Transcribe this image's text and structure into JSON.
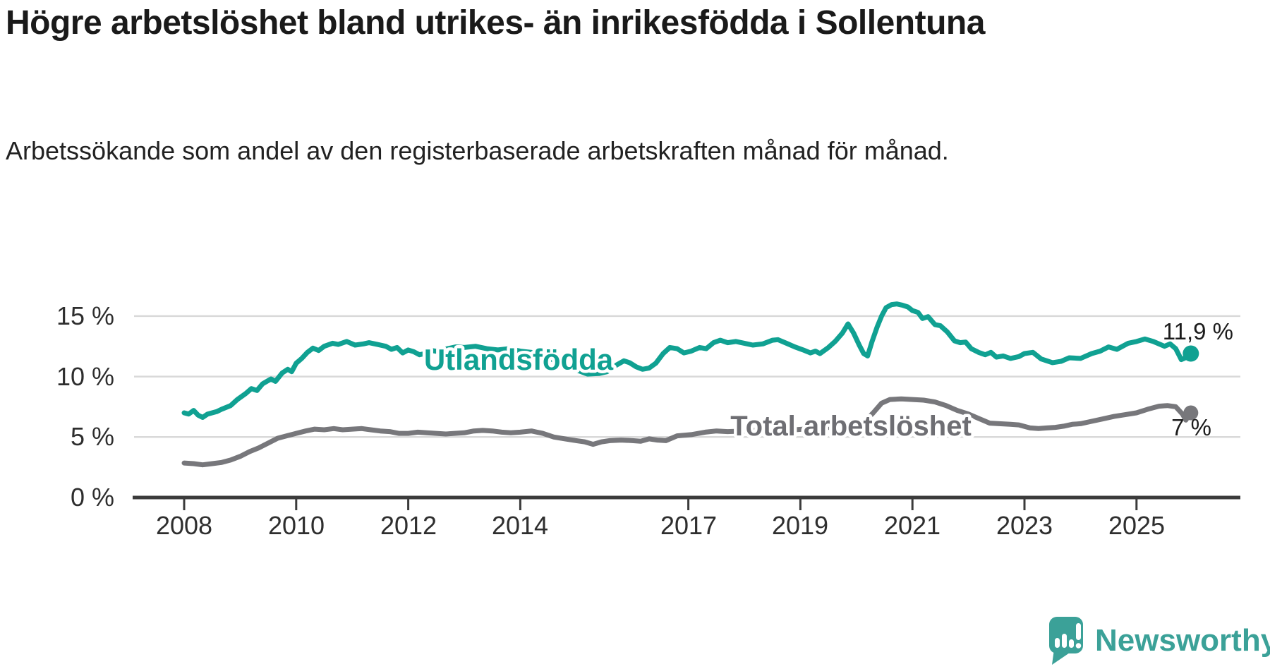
{
  "title": "Högre arbetslöshet bland utrikes- än inrikesfödda i Sollentuna",
  "subtitle": "Arbetssökande som andel av den registerbaserade arbetskraften månad för månad.",
  "branding": {
    "logo_text": "Newsworthy",
    "logo_icon": "speech-bubble-bar-chart-icon",
    "logo_color": "#3ba198"
  },
  "chart_data": {
    "type": "line",
    "title": "Högre arbetslöshet bland utrikes- än inrikesfödda i Sollentuna",
    "xlabel": "",
    "ylabel": "",
    "grid": true,
    "x_axis": {
      "ticks": [
        2008,
        2010,
        2012,
        2014,
        2017,
        2019,
        2021,
        2023,
        2025
      ],
      "tick_labels": [
        "2008",
        "2010",
        "2012",
        "2014",
        "2017",
        "2019",
        "2021",
        "2023",
        "2025"
      ]
    },
    "y_axis": {
      "ticks": [
        0,
        5,
        10,
        15
      ],
      "tick_labels": [
        "0 %",
        "5 %",
        "10 %",
        "15 %"
      ],
      "range": [
        0,
        16.5
      ]
    },
    "series": [
      {
        "name": "Utlandsfödda",
        "color": "#10a192",
        "end_label": "11,9 %",
        "end_value": 11.9,
        "points": [
          [
            2008.0,
            7.0
          ],
          [
            2008.08,
            6.9
          ],
          [
            2008.17,
            7.2
          ],
          [
            2008.25,
            6.8
          ],
          [
            2008.33,
            6.62
          ],
          [
            2008.42,
            6.9
          ],
          [
            2008.5,
            7.0
          ],
          [
            2008.58,
            7.1
          ],
          [
            2008.67,
            7.3
          ],
          [
            2008.83,
            7.6
          ],
          [
            2008.95,
            8.1
          ],
          [
            2009.1,
            8.6
          ],
          [
            2009.2,
            9.0
          ],
          [
            2009.3,
            8.85
          ],
          [
            2009.4,
            9.4
          ],
          [
            2009.55,
            9.8
          ],
          [
            2009.63,
            9.6
          ],
          [
            2009.75,
            10.3
          ],
          [
            2009.85,
            10.6
          ],
          [
            2009.92,
            10.4
          ],
          [
            2010.0,
            11.1
          ],
          [
            2010.1,
            11.5
          ],
          [
            2010.2,
            12.0
          ],
          [
            2010.3,
            12.35
          ],
          [
            2010.4,
            12.15
          ],
          [
            2010.5,
            12.5
          ],
          [
            2010.65,
            12.75
          ],
          [
            2010.75,
            12.65
          ],
          [
            2010.9,
            12.9
          ],
          [
            2011.05,
            12.6
          ],
          [
            2011.2,
            12.7
          ],
          [
            2011.3,
            12.8
          ],
          [
            2011.45,
            12.65
          ],
          [
            2011.6,
            12.5
          ],
          [
            2011.7,
            12.25
          ],
          [
            2011.8,
            12.4
          ],
          [
            2011.9,
            11.95
          ],
          [
            2012.0,
            12.2
          ],
          [
            2012.1,
            12.05
          ],
          [
            2012.2,
            11.8
          ],
          [
            2012.3,
            11.9
          ],
          [
            2012.42,
            12.15
          ],
          [
            2012.55,
            12.05
          ],
          [
            2012.7,
            12.3
          ],
          [
            2012.85,
            12.45
          ],
          [
            2013.0,
            12.4
          ],
          [
            2013.2,
            12.5
          ],
          [
            2013.4,
            12.3
          ],
          [
            2013.6,
            12.2
          ],
          [
            2013.8,
            12.3
          ],
          [
            2014.0,
            12.1
          ],
          [
            2014.2,
            12.0
          ],
          [
            2014.4,
            11.7
          ],
          [
            2014.6,
            11.35
          ],
          [
            2014.8,
            11.0
          ],
          [
            2015.0,
            10.55
          ],
          [
            2015.2,
            10.2
          ],
          [
            2015.4,
            10.25
          ],
          [
            2015.55,
            10.4
          ],
          [
            2015.7,
            10.9
          ],
          [
            2015.85,
            11.3
          ],
          [
            2015.95,
            11.15
          ],
          [
            2016.07,
            10.8
          ],
          [
            2016.18,
            10.6
          ],
          [
            2016.3,
            10.7
          ],
          [
            2016.42,
            11.1
          ],
          [
            2016.55,
            11.9
          ],
          [
            2016.67,
            12.4
          ],
          [
            2016.8,
            12.3
          ],
          [
            2016.92,
            11.95
          ],
          [
            2017.05,
            12.1
          ],
          [
            2017.2,
            12.4
          ],
          [
            2017.32,
            12.3
          ],
          [
            2017.45,
            12.8
          ],
          [
            2017.57,
            13.0
          ],
          [
            2017.7,
            12.8
          ],
          [
            2017.85,
            12.9
          ],
          [
            2018.0,
            12.75
          ],
          [
            2018.15,
            12.6
          ],
          [
            2018.33,
            12.7
          ],
          [
            2018.5,
            13.0
          ],
          [
            2018.6,
            13.05
          ],
          [
            2018.75,
            12.75
          ],
          [
            2018.9,
            12.45
          ],
          [
            2019.05,
            12.2
          ],
          [
            2019.18,
            11.95
          ],
          [
            2019.27,
            12.1
          ],
          [
            2019.35,
            11.9
          ],
          [
            2019.5,
            12.4
          ],
          [
            2019.62,
            12.9
          ],
          [
            2019.75,
            13.6
          ],
          [
            2019.85,
            14.35
          ],
          [
            2019.95,
            13.6
          ],
          [
            2020.05,
            12.6
          ],
          [
            2020.13,
            11.9
          ],
          [
            2020.2,
            11.7
          ],
          [
            2020.28,
            12.9
          ],
          [
            2020.37,
            14.1
          ],
          [
            2020.45,
            15.0
          ],
          [
            2020.53,
            15.7
          ],
          [
            2020.63,
            15.95
          ],
          [
            2020.72,
            16.0
          ],
          [
            2020.82,
            15.9
          ],
          [
            2020.92,
            15.75
          ],
          [
            2021.0,
            15.45
          ],
          [
            2021.1,
            15.3
          ],
          [
            2021.18,
            14.8
          ],
          [
            2021.28,
            14.95
          ],
          [
            2021.4,
            14.3
          ],
          [
            2021.5,
            14.2
          ],
          [
            2021.62,
            13.7
          ],
          [
            2021.75,
            12.95
          ],
          [
            2021.85,
            12.8
          ],
          [
            2021.95,
            12.85
          ],
          [
            2022.05,
            12.3
          ],
          [
            2022.18,
            12.0
          ],
          [
            2022.3,
            11.8
          ],
          [
            2022.4,
            12.0
          ],
          [
            2022.5,
            11.6
          ],
          [
            2022.62,
            11.7
          ],
          [
            2022.75,
            11.5
          ],
          [
            2022.9,
            11.65
          ],
          [
            2023.0,
            11.9
          ],
          [
            2023.15,
            12.0
          ],
          [
            2023.3,
            11.45
          ],
          [
            2023.5,
            11.15
          ],
          [
            2023.65,
            11.25
          ],
          [
            2023.8,
            11.55
          ],
          [
            2024.0,
            11.5
          ],
          [
            2024.2,
            11.9
          ],
          [
            2024.35,
            12.1
          ],
          [
            2024.5,
            12.45
          ],
          [
            2024.65,
            12.25
          ],
          [
            2024.85,
            12.75
          ],
          [
            2025.0,
            12.9
          ],
          [
            2025.15,
            13.1
          ],
          [
            2025.3,
            12.9
          ],
          [
            2025.5,
            12.5
          ],
          [
            2025.6,
            12.7
          ],
          [
            2025.7,
            12.3
          ],
          [
            2025.8,
            11.4
          ],
          [
            2025.9,
            11.6
          ],
          [
            2025.97,
            11.9
          ]
        ]
      },
      {
        "name": "Total arbetslöshet",
        "color": "#77777b",
        "end_label": "7 %",
        "end_value": 7.0,
        "points": [
          [
            2008.0,
            2.85
          ],
          [
            2008.17,
            2.8
          ],
          [
            2008.33,
            2.7
          ],
          [
            2008.5,
            2.8
          ],
          [
            2008.67,
            2.9
          ],
          [
            2008.83,
            3.1
          ],
          [
            2009.0,
            3.4
          ],
          [
            2009.17,
            3.8
          ],
          [
            2009.33,
            4.1
          ],
          [
            2009.5,
            4.5
          ],
          [
            2009.67,
            4.9
          ],
          [
            2009.83,
            5.1
          ],
          [
            2010.0,
            5.3
          ],
          [
            2010.17,
            5.5
          ],
          [
            2010.33,
            5.65
          ],
          [
            2010.5,
            5.6
          ],
          [
            2010.67,
            5.7
          ],
          [
            2010.83,
            5.6
          ],
          [
            2011.0,
            5.65
          ],
          [
            2011.17,
            5.7
          ],
          [
            2011.33,
            5.6
          ],
          [
            2011.5,
            5.5
          ],
          [
            2011.67,
            5.45
          ],
          [
            2011.83,
            5.3
          ],
          [
            2012.0,
            5.3
          ],
          [
            2012.17,
            5.4
          ],
          [
            2012.33,
            5.35
          ],
          [
            2012.5,
            5.3
          ],
          [
            2012.67,
            5.25
          ],
          [
            2012.83,
            5.3
          ],
          [
            2013.0,
            5.35
          ],
          [
            2013.17,
            5.5
          ],
          [
            2013.33,
            5.55
          ],
          [
            2013.5,
            5.5
          ],
          [
            2013.67,
            5.4
          ],
          [
            2013.83,
            5.35
          ],
          [
            2014.0,
            5.4
          ],
          [
            2014.2,
            5.5
          ],
          [
            2014.4,
            5.3
          ],
          [
            2014.6,
            5.0
          ],
          [
            2014.8,
            4.85
          ],
          [
            2015.0,
            4.7
          ],
          [
            2015.15,
            4.6
          ],
          [
            2015.3,
            4.4
          ],
          [
            2015.45,
            4.6
          ],
          [
            2015.6,
            4.7
          ],
          [
            2015.8,
            4.75
          ],
          [
            2016.0,
            4.7
          ],
          [
            2016.15,
            4.65
          ],
          [
            2016.3,
            4.85
          ],
          [
            2016.45,
            4.75
          ],
          [
            2016.6,
            4.7
          ],
          [
            2016.8,
            5.1
          ],
          [
            2017.05,
            5.2
          ],
          [
            2017.3,
            5.4
          ],
          [
            2017.5,
            5.5
          ],
          [
            2017.7,
            5.45
          ],
          [
            2018.0,
            5.5
          ],
          [
            2018.3,
            5.6
          ],
          [
            2018.6,
            5.5
          ],
          [
            2018.9,
            5.6
          ],
          [
            2019.2,
            5.7
          ],
          [
            2019.5,
            5.8
          ],
          [
            2019.8,
            5.9
          ],
          [
            2020.0,
            6.0
          ],
          [
            2020.15,
            6.3
          ],
          [
            2020.3,
            7.0
          ],
          [
            2020.45,
            7.8
          ],
          [
            2020.6,
            8.1
          ],
          [
            2020.8,
            8.15
          ],
          [
            2021.0,
            8.1
          ],
          [
            2021.2,
            8.05
          ],
          [
            2021.4,
            7.9
          ],
          [
            2021.6,
            7.6
          ],
          [
            2021.8,
            7.2
          ],
          [
            2022.0,
            6.9
          ],
          [
            2022.2,
            6.5
          ],
          [
            2022.38,
            6.15
          ],
          [
            2022.55,
            6.1
          ],
          [
            2022.75,
            6.05
          ],
          [
            2022.9,
            6.0
          ],
          [
            2023.1,
            5.75
          ],
          [
            2023.25,
            5.7
          ],
          [
            2023.4,
            5.75
          ],
          [
            2023.55,
            5.8
          ],
          [
            2023.7,
            5.9
          ],
          [
            2023.85,
            6.05
          ],
          [
            2024.0,
            6.1
          ],
          [
            2024.2,
            6.3
          ],
          [
            2024.4,
            6.5
          ],
          [
            2024.6,
            6.7
          ],
          [
            2024.8,
            6.85
          ],
          [
            2025.0,
            7.0
          ],
          [
            2025.2,
            7.3
          ],
          [
            2025.4,
            7.55
          ],
          [
            2025.55,
            7.6
          ],
          [
            2025.7,
            7.5
          ],
          [
            2025.82,
            6.9
          ],
          [
            2025.88,
            6.4
          ],
          [
            2025.97,
            7.0
          ]
        ]
      }
    ],
    "annotations": {
      "series_label_1": "Utlandsfödda",
      "series_label_2": "Total arbetslöshet",
      "end_label_1": "11,9 %",
      "end_label_2": "7 %"
    },
    "legend_position": "inline-labels"
  }
}
